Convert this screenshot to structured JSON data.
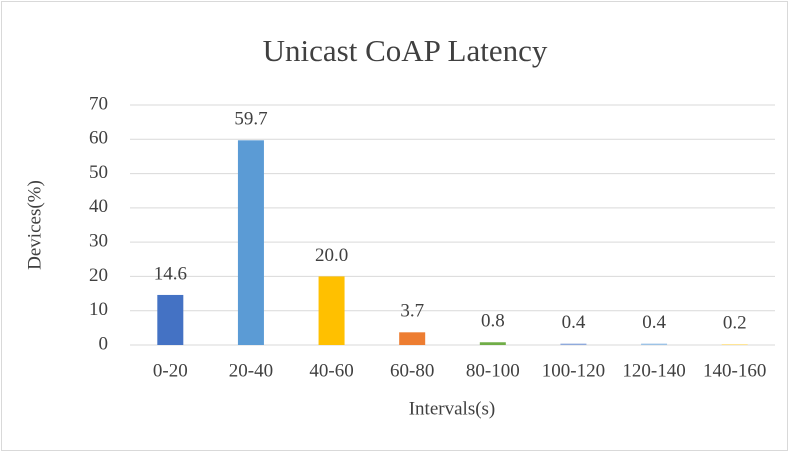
{
  "chart_data": {
    "type": "bar",
    "title": "Unicast CoAP Latency",
    "x_label": "Intervals(s)",
    "y_label": "Devices(%)",
    "categories": [
      "0-20",
      "20-40",
      "40-60",
      "60-80",
      "80-100",
      "100-120",
      "120-140",
      "140-160"
    ],
    "values": [
      14.6,
      59.7,
      20.0,
      3.7,
      0.8,
      0.4,
      0.4,
      0.2
    ],
    "value_labels": [
      "14.6",
      "59.7",
      "20.0",
      "3.7",
      "0.8",
      "0.4",
      "0.4",
      "0.2"
    ],
    "colors": [
      "#4472c4",
      "#5b9bd5",
      "#ffc000",
      "#ed7d31",
      "#70ad47",
      "#8faadc",
      "#9dc3e6",
      "#ffd966"
    ],
    "ylim": [
      0,
      70
    ],
    "yticks": [
      0,
      10,
      20,
      30,
      40,
      50,
      60,
      70
    ],
    "grid": true
  }
}
